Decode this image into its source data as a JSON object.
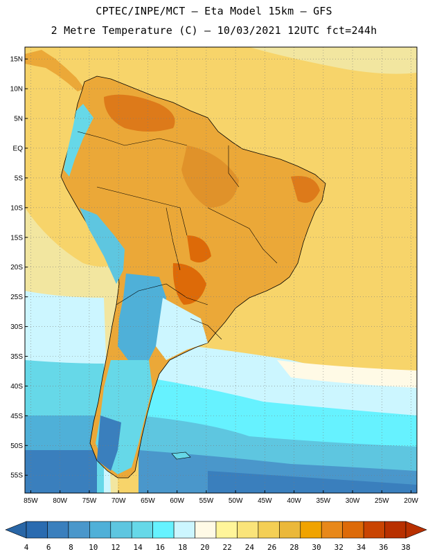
{
  "header": {
    "line1": "CPTEC/INPE/MCT –  Eta Model 15km – GFS",
    "line2": "2 Metre Temperature (C) – 10/03/2021 12UTC fct=244h"
  },
  "map": {
    "region": "South America",
    "lon_range": [
      -86,
      -19
    ],
    "lat_range": [
      -58,
      17
    ],
    "lat_labels": [
      "15N",
      "10N",
      "5N",
      "EQ",
      "5S",
      "10S",
      "15S",
      "20S",
      "25S",
      "30S",
      "35S",
      "40S",
      "45S",
      "50S",
      "55S"
    ],
    "lon_labels": [
      "85W",
      "80W",
      "75W",
      "70W",
      "65W",
      "60W",
      "55W",
      "50W",
      "45W",
      "40W",
      "35W",
      "30W",
      "25W",
      "20W"
    ]
  },
  "colorbar": {
    "labels": [
      "4",
      "6",
      "8",
      "10",
      "12",
      "14",
      "16",
      "18",
      "20",
      "22",
      "24",
      "26",
      "28",
      "30",
      "32",
      "34",
      "36",
      "38"
    ],
    "colors": [
      "#2a6bb0",
      "#3a7fbd",
      "#4a97cb",
      "#4fb0d8",
      "#5ec6e0",
      "#66d8e8",
      "#66f2ff",
      "#ccf6ff",
      "#fffae6",
      "#fff59a",
      "#fae47a",
      "#f4cf55",
      "#ebb83a",
      "#f0a300",
      "#e8881a",
      "#dd6a08",
      "#c94402",
      "#b83000"
    ]
  },
  "colors": {
    "warm_land": "#eba838",
    "hot_land": "#dd7a1a",
    "ocean_tropical": "#f7d46a",
    "ocean_mid": "#f2e6a0",
    "ocean_cool": "#ccf6ff",
    "ocean_cold": "#5ec6e0",
    "ocean_coldest": "#3a7fbd"
  }
}
